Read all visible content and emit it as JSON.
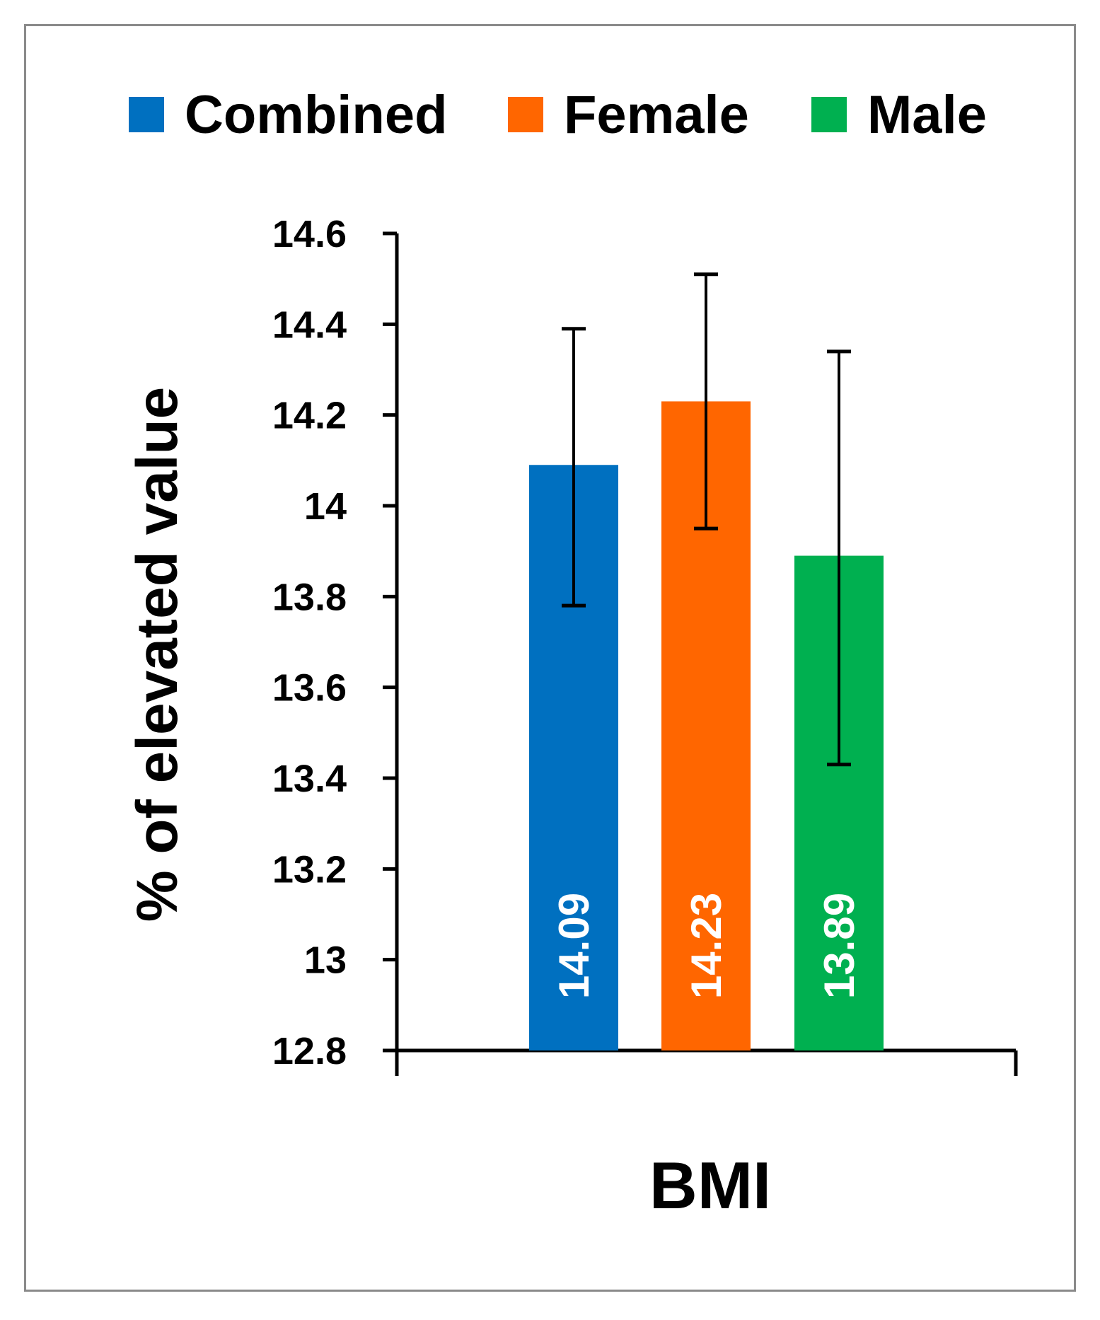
{
  "chart_data": {
    "type": "bar",
    "title": "",
    "xlabel": "BMI",
    "ylabel": "% of elevated value",
    "ylim": [
      12.8,
      14.6
    ],
    "yticks": [
      "14.6",
      "14.4",
      "14.2",
      "14",
      "13.8",
      "13.6",
      "13.4",
      "13.2",
      "13",
      "12.8"
    ],
    "legend_position": "top",
    "grid": false,
    "series": [
      {
        "name": "Combined",
        "value": 14.09,
        "label": "14.09",
        "err_low": 13.78,
        "err_high": 14.39,
        "color": "#0070c0"
      },
      {
        "name": "Female",
        "value": 14.23,
        "label": "14.23",
        "err_low": 13.95,
        "err_high": 14.51,
        "color": "#ff6600"
      },
      {
        "name": "Male",
        "value": 13.89,
        "label": "13.89",
        "err_low": 13.43,
        "err_high": 14.34,
        "color": "#00b050"
      }
    ]
  }
}
